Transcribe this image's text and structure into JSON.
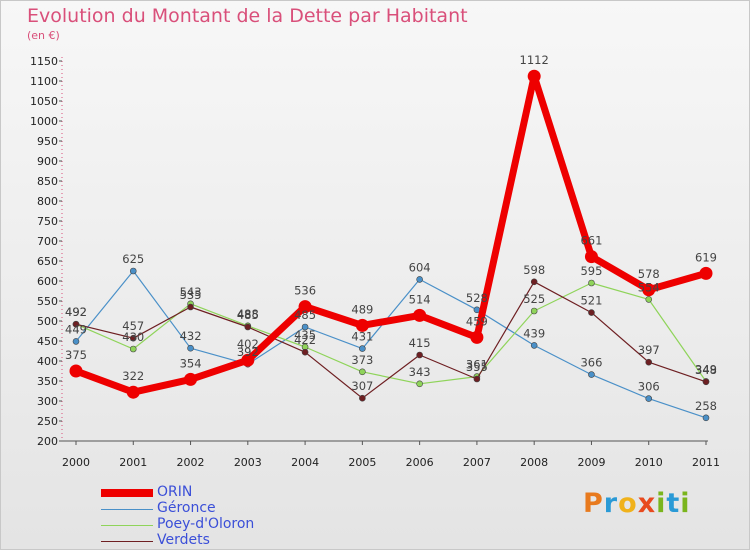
{
  "header": {
    "title": "Evolution du Montant de la Dette par Habitant",
    "unit": "(en €)"
  },
  "logo": {
    "letters": [
      "P",
      "r",
      "o",
      "x",
      "i",
      "t",
      "i"
    ],
    "colors": [
      "#e87a1e",
      "#2a9ad6",
      "#f0b21b",
      "#e84a1e",
      "#7ab51d",
      "#2a9ad6",
      "#7ab51d"
    ]
  },
  "chart_data": {
    "type": "line",
    "title": "Evolution du Montant de la Dette par Habitant",
    "ylabel": "(en €)",
    "xlabel": "",
    "x": [
      "2000",
      "2001",
      "2002",
      "2003",
      "2004",
      "2005",
      "2006",
      "2007",
      "2008",
      "2009",
      "2010",
      "2011"
    ],
    "yticks": [
      200,
      250,
      300,
      350,
      400,
      450,
      500,
      550,
      600,
      650,
      700,
      750,
      800,
      850,
      900,
      950,
      1000,
      1050,
      1100,
      1150
    ],
    "ylim": [
      200,
      1150
    ],
    "grid": false,
    "legend": "bottom-left",
    "series": [
      {
        "name": "Géronce",
        "color": "#4a90c8",
        "values": [
          449,
          625,
          432,
          392,
          485,
          431,
          604,
          528,
          439,
          366,
          306,
          258
        ]
      },
      {
        "name": "Poey-d'Oloron",
        "color": "#8fd45a",
        "values": [
          492,
          430,
          543,
          488,
          435,
          373,
          343,
          361,
          525,
          595,
          554,
          349
        ]
      },
      {
        "name": "Verdets",
        "color": "#6e1f22",
        "values": [
          492,
          457,
          535,
          485,
          422,
          307,
          415,
          355,
          598,
          521,
          397,
          348
        ]
      },
      {
        "name": "ORIN",
        "color": "#ee0000",
        "values": [
          375,
          322,
          354,
          402,
          536,
          489,
          514,
          459,
          1112,
          661,
          578,
          619
        ]
      }
    ],
    "legend_order": [
      "ORIN",
      "Géronce",
      "Poey-d'Oloron",
      "Verdets"
    ]
  }
}
